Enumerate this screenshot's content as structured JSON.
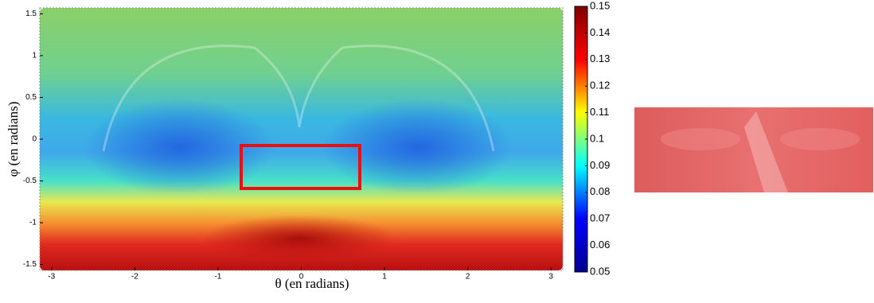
{
  "chart_data": {
    "type": "heatmap",
    "xlabel": "θ (en radians)",
    "ylabel": "φ (en radians)",
    "xlim": [
      -3.1416,
      3.1416
    ],
    "xticks": [
      -3,
      -2,
      -1,
      0,
      1,
      2,
      3
    ],
    "ylim": [
      -1.5708,
      1.5708
    ],
    "yticks": [
      -1.5,
      -1,
      -0.5,
      0,
      0.5,
      1,
      1.5
    ],
    "clim": [
      0.05,
      0.15
    ],
    "cticks": [
      0.05,
      0.06,
      0.07,
      0.08,
      0.09,
      0.1,
      0.11,
      0.12,
      0.13,
      0.14,
      0.15
    ],
    "colormap": [
      "#00008f",
      "#0000ff",
      "#00ffff",
      "#ffff00",
      "#ff0000",
      "#800000"
    ]
  }
}
